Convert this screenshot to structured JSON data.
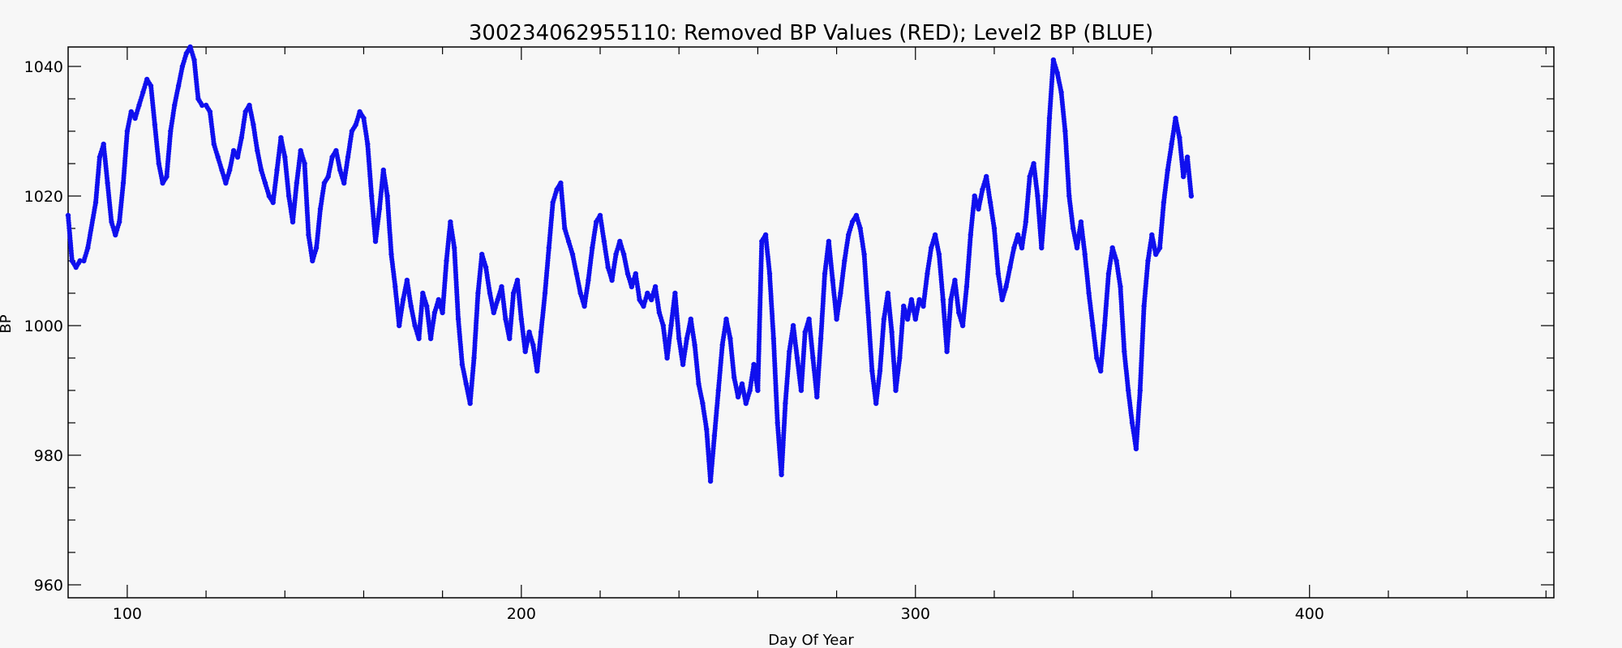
{
  "chart_data": {
    "type": "scatter",
    "title": "300234062955110: Removed BP Values (RED); Level2 BP (BLUE)",
    "xlabel": "Day Of Year",
    "ylabel": "BP",
    "xlim": [
      85,
      462
    ],
    "ylim": [
      958,
      1043
    ],
    "x_ticks": [
      100,
      200,
      300,
      400
    ],
    "y_ticks": [
      960,
      980,
      1000,
      1020,
      1040
    ],
    "grid": false,
    "colors": {
      "level2": "#1010ee",
      "removed": "#ee1010",
      "background": "#f7f7f7"
    },
    "series": [
      {
        "color": "#1010ee",
        "points": [
          [
            85,
            1017
          ],
          [
            86,
            1010
          ],
          [
            87,
            1009
          ],
          [
            88,
            1010
          ],
          [
            89,
            1010
          ],
          [
            90,
            1012
          ],
          [
            92,
            1019
          ],
          [
            93,
            1026
          ],
          [
            94,
            1028
          ],
          [
            95,
            1022
          ],
          [
            96,
            1016
          ],
          [
            97,
            1014
          ],
          [
            98,
            1016
          ],
          [
            99,
            1022
          ],
          [
            100,
            1030
          ],
          [
            101,
            1033
          ],
          [
            102,
            1032
          ],
          [
            103,
            1034
          ],
          [
            104,
            1036
          ],
          [
            105,
            1038
          ],
          [
            106,
            1037
          ],
          [
            107,
            1031
          ],
          [
            108,
            1025
          ],
          [
            109,
            1022
          ],
          [
            110,
            1023
          ],
          [
            111,
            1030
          ],
          [
            112,
            1034
          ],
          [
            113,
            1037
          ],
          [
            114,
            1040
          ],
          [
            115,
            1042
          ],
          [
            116,
            1043
          ],
          [
            117,
            1041
          ],
          [
            118,
            1035
          ],
          [
            119,
            1034
          ],
          [
            120,
            1034
          ],
          [
            121,
            1033
          ],
          [
            122,
            1028
          ],
          [
            123,
            1026
          ],
          [
            124,
            1024
          ],
          [
            125,
            1022
          ],
          [
            126,
            1024
          ],
          [
            127,
            1027
          ],
          [
            128,
            1026
          ],
          [
            129,
            1029
          ],
          [
            130,
            1033
          ],
          [
            131,
            1034
          ],
          [
            132,
            1031
          ],
          [
            133,
            1027
          ],
          [
            134,
            1024
          ],
          [
            135,
            1022
          ],
          [
            136,
            1020
          ],
          [
            137,
            1019
          ],
          [
            138,
            1024
          ],
          [
            139,
            1029
          ],
          [
            140,
            1026
          ],
          [
            141,
            1020
          ],
          [
            142,
            1016
          ],
          [
            143,
            1022
          ],
          [
            144,
            1027
          ],
          [
            145,
            1025
          ],
          [
            146,
            1014
          ],
          [
            147,
            1010
          ],
          [
            148,
            1012
          ],
          [
            149,
            1018
          ],
          [
            150,
            1022
          ],
          [
            151,
            1023
          ],
          [
            152,
            1026
          ],
          [
            153,
            1027
          ],
          [
            154,
            1024
          ],
          [
            155,
            1022
          ],
          [
            156,
            1026
          ],
          [
            157,
            1030
          ],
          [
            158,
            1031
          ],
          [
            159,
            1033
          ],
          [
            160,
            1032
          ],
          [
            161,
            1028
          ],
          [
            162,
            1020
          ],
          [
            163,
            1013
          ],
          [
            164,
            1018
          ],
          [
            165,
            1024
          ],
          [
            166,
            1020
          ],
          [
            167,
            1011
          ],
          [
            168,
            1006
          ],
          [
            169,
            1000
          ],
          [
            170,
            1004
          ],
          [
            171,
            1007
          ],
          [
            172,
            1003
          ],
          [
            173,
            1000
          ],
          [
            174,
            998
          ],
          [
            175,
            1005
          ],
          [
            176,
            1003
          ],
          [
            177,
            998
          ],
          [
            178,
            1002
          ],
          [
            179,
            1004
          ],
          [
            180,
            1002
          ],
          [
            181,
            1010
          ],
          [
            182,
            1016
          ],
          [
            183,
            1012
          ],
          [
            184,
            1001
          ],
          [
            185,
            994
          ],
          [
            186,
            991
          ],
          [
            187,
            988
          ],
          [
            188,
            995
          ],
          [
            189,
            1005
          ],
          [
            190,
            1011
          ],
          [
            191,
            1009
          ],
          [
            192,
            1005
          ],
          [
            193,
            1002
          ],
          [
            194,
            1004
          ],
          [
            195,
            1006
          ],
          [
            196,
            1001
          ],
          [
            197,
            998
          ],
          [
            198,
            1005
          ],
          [
            199,
            1007
          ],
          [
            200,
            1001
          ],
          [
            201,
            996
          ],
          [
            202,
            999
          ],
          [
            203,
            997
          ],
          [
            204,
            993
          ],
          [
            205,
            999
          ],
          [
            206,
            1005
          ],
          [
            207,
            1012
          ],
          [
            208,
            1019
          ],
          [
            209,
            1021
          ],
          [
            210,
            1022
          ],
          [
            211,
            1015
          ],
          [
            212,
            1013
          ],
          [
            213,
            1011
          ],
          [
            214,
            1008
          ],
          [
            215,
            1005
          ],
          [
            216,
            1003
          ],
          [
            217,
            1007
          ],
          [
            218,
            1012
          ],
          [
            219,
            1016
          ],
          [
            220,
            1017
          ],
          [
            221,
            1013
          ],
          [
            222,
            1009
          ],
          [
            223,
            1007
          ],
          [
            224,
            1011
          ],
          [
            225,
            1013
          ],
          [
            226,
            1011
          ],
          [
            227,
            1008
          ],
          [
            228,
            1006
          ],
          [
            229,
            1008
          ],
          [
            230,
            1004
          ],
          [
            231,
            1003
          ],
          [
            232,
            1005
          ],
          [
            233,
            1004
          ],
          [
            234,
            1006
          ],
          [
            235,
            1002
          ],
          [
            236,
            1000
          ],
          [
            237,
            995
          ],
          [
            238,
            1000
          ],
          [
            239,
            1005
          ],
          [
            240,
            998
          ],
          [
            241,
            994
          ],
          [
            242,
            998
          ],
          [
            243,
            1001
          ],
          [
            244,
            997
          ],
          [
            245,
            991
          ],
          [
            246,
            988
          ],
          [
            247,
            984
          ],
          [
            248,
            976
          ],
          [
            249,
            983
          ],
          [
            250,
            990
          ],
          [
            251,
            997
          ],
          [
            252,
            1001
          ],
          [
            253,
            998
          ],
          [
            254,
            992
          ],
          [
            255,
            989
          ],
          [
            256,
            991
          ],
          [
            257,
            988
          ],
          [
            258,
            990
          ],
          [
            259,
            994
          ],
          [
            260,
            990
          ],
          [
            261,
            1013
          ],
          [
            262,
            1014
          ],
          [
            263,
            1008
          ],
          [
            264,
            998
          ],
          [
            265,
            985
          ],
          [
            266,
            977
          ],
          [
            267,
            988
          ],
          [
            268,
            996
          ],
          [
            269,
            1000
          ],
          [
            270,
            995
          ],
          [
            271,
            990
          ],
          [
            272,
            999
          ],
          [
            273,
            1001
          ],
          [
            274,
            995
          ],
          [
            275,
            989
          ],
          [
            276,
            998
          ],
          [
            277,
            1008
          ],
          [
            278,
            1013
          ],
          [
            279,
            1007
          ],
          [
            280,
            1001
          ],
          [
            281,
            1005
          ],
          [
            282,
            1010
          ],
          [
            283,
            1014
          ],
          [
            284,
            1016
          ],
          [
            285,
            1017
          ],
          [
            286,
            1015
          ],
          [
            287,
            1011
          ],
          [
            288,
            1002
          ],
          [
            289,
            993
          ],
          [
            290,
            988
          ],
          [
            291,
            993
          ],
          [
            292,
            1001
          ],
          [
            293,
            1005
          ],
          [
            294,
            999
          ],
          [
            295,
            990
          ],
          [
            296,
            995
          ],
          [
            297,
            1003
          ],
          [
            298,
            1001
          ],
          [
            299,
            1004
          ],
          [
            300,
            1001
          ],
          [
            301,
            1004
          ],
          [
            302,
            1003
          ],
          [
            303,
            1008
          ],
          [
            304,
            1012
          ],
          [
            305,
            1014
          ],
          [
            306,
            1011
          ],
          [
            307,
            1004
          ],
          [
            308,
            996
          ],
          [
            309,
            1004
          ],
          [
            310,
            1007
          ],
          [
            311,
            1002
          ],
          [
            312,
            1000
          ],
          [
            313,
            1006
          ],
          [
            314,
            1014
          ],
          [
            315,
            1020
          ],
          [
            316,
            1018
          ],
          [
            317,
            1021
          ],
          [
            318,
            1023
          ],
          [
            319,
            1019
          ],
          [
            320,
            1015
          ],
          [
            321,
            1008
          ],
          [
            322,
            1004
          ],
          [
            323,
            1006
          ],
          [
            324,
            1009
          ],
          [
            325,
            1012
          ],
          [
            326,
            1014
          ],
          [
            327,
            1012
          ],
          [
            328,
            1016
          ],
          [
            329,
            1023
          ],
          [
            330,
            1025
          ],
          [
            331,
            1020
          ],
          [
            332,
            1012
          ],
          [
            333,
            1020
          ],
          [
            334,
            1032
          ],
          [
            335,
            1041
          ],
          [
            336,
            1039
          ],
          [
            337,
            1036
          ],
          [
            338,
            1030
          ],
          [
            339,
            1020
          ],
          [
            340,
            1015
          ],
          [
            341,
            1012
          ],
          [
            342,
            1016
          ],
          [
            343,
            1011
          ],
          [
            344,
            1005
          ],
          [
            345,
            1000
          ],
          [
            346,
            995
          ],
          [
            347,
            993
          ],
          [
            348,
            1000
          ],
          [
            349,
            1008
          ],
          [
            350,
            1012
          ],
          [
            351,
            1010
          ],
          [
            352,
            1006
          ],
          [
            353,
            996
          ],
          [
            354,
            990
          ],
          [
            355,
            985
          ],
          [
            356,
            981
          ],
          [
            357,
            990
          ],
          [
            358,
            1003
          ],
          [
            359,
            1010
          ],
          [
            360,
            1014
          ],
          [
            361,
            1011
          ],
          [
            362,
            1012
          ],
          [
            363,
            1019
          ],
          [
            364,
            1024
          ],
          [
            365,
            1028
          ],
          [
            366,
            1032
          ],
          [
            367,
            1029
          ],
          [
            368,
            1023
          ],
          [
            369,
            1026
          ],
          [
            370,
            1020
          ]
        ]
      }
    ]
  }
}
